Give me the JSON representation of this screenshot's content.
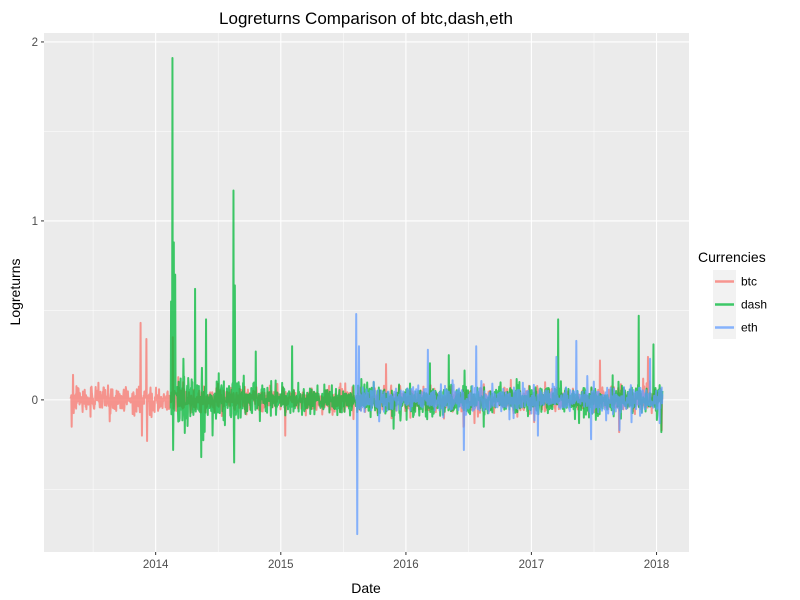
{
  "chart_data": {
    "type": "line",
    "title": "Logreturns Comparison of  btc,dash,eth",
    "xlabel": "Date",
    "ylabel": "Logreturns",
    "x_range": [
      "2013-04-28",
      "2018-01-18"
    ],
    "ylim": [
      -0.85,
      2.05
    ],
    "x_ticks": [
      {
        "label": "2014",
        "date": "2014-01-01"
      },
      {
        "label": "2015",
        "date": "2015-01-01"
      },
      {
        "label": "2016",
        "date": "2016-01-01"
      },
      {
        "label": "2017",
        "date": "2017-01-01"
      },
      {
        "label": "2018",
        "date": "2018-01-01"
      }
    ],
    "y_ticks": [
      0,
      1,
      2
    ],
    "grid": true,
    "legend": {
      "title": "Currencies",
      "position": "right"
    },
    "series": [
      {
        "name": "btc",
        "color": "#F8766D",
        "date_range": [
          "2013-04-28",
          "2018-01-18"
        ],
        "typical_amplitude": 0.06,
        "points": [
          {
            "x": "2013-05-01",
            "y": -0.15
          },
          {
            "x": "2013-05-05",
            "y": 0.14
          },
          {
            "x": "2013-08-20",
            "y": -0.12
          },
          {
            "x": "2013-11-18",
            "y": 0.43
          },
          {
            "x": "2013-11-22",
            "y": -0.2
          },
          {
            "x": "2013-12-05",
            "y": 0.34
          },
          {
            "x": "2013-12-07",
            "y": -0.23
          },
          {
            "x": "2014-02-20",
            "y": 0.35
          },
          {
            "x": "2015-01-14",
            "y": -0.2
          },
          {
            "x": "2015-11-04",
            "y": 0.2
          },
          {
            "x": "2016-06-17",
            "y": -0.15
          },
          {
            "x": "2017-07-20",
            "y": 0.22
          },
          {
            "x": "2017-09-14",
            "y": -0.18
          },
          {
            "x": "2017-12-07",
            "y": 0.24
          },
          {
            "x": "2018-01-16",
            "y": -0.17
          }
        ]
      },
      {
        "name": "dash",
        "color": "#00BA38",
        "date_range": [
          "2014-02-14",
          "2018-01-18"
        ],
        "typical_amplitude": 0.07,
        "points": [
          {
            "x": "2014-02-15",
            "y": 0.55
          },
          {
            "x": "2014-02-19",
            "y": 1.91
          },
          {
            "x": "2014-02-21",
            "y": -0.28
          },
          {
            "x": "2014-02-23",
            "y": 0.88
          },
          {
            "x": "2014-02-27",
            "y": 0.7
          },
          {
            "x": "2014-04-26",
            "y": 0.62
          },
          {
            "x": "2014-05-14",
            "y": -0.32
          },
          {
            "x": "2014-05-28",
            "y": 0.45
          },
          {
            "x": "2014-08-16",
            "y": 1.17
          },
          {
            "x": "2014-08-18",
            "y": -0.35
          },
          {
            "x": "2014-08-20",
            "y": 0.64
          },
          {
            "x": "2014-10-20",
            "y": 0.27
          },
          {
            "x": "2015-02-03",
            "y": 0.3
          },
          {
            "x": "2016-05-05",
            "y": 0.25
          },
          {
            "x": "2016-08-15",
            "y": -0.15
          },
          {
            "x": "2017-03-20",
            "y": 0.45
          },
          {
            "x": "2017-05-20",
            "y": -0.13
          },
          {
            "x": "2017-11-10",
            "y": 0.47
          },
          {
            "x": "2017-12-23",
            "y": 0.31
          },
          {
            "x": "2018-01-15",
            "y": -0.18
          }
        ]
      },
      {
        "name": "eth",
        "color": "#619CFF",
        "date_range": [
          "2015-08-08",
          "2018-01-18"
        ],
        "typical_amplitude": 0.06,
        "points": [
          {
            "x": "2015-08-09",
            "y": 0.48
          },
          {
            "x": "2015-08-12",
            "y": -0.75
          },
          {
            "x": "2015-08-17",
            "y": 0.3
          },
          {
            "x": "2015-10-15",
            "y": -0.12
          },
          {
            "x": "2016-03-05",
            "y": 0.28
          },
          {
            "x": "2016-06-18",
            "y": -0.28
          },
          {
            "x": "2016-07-24",
            "y": 0.3
          },
          {
            "x": "2017-01-20",
            "y": -0.2
          },
          {
            "x": "2017-03-15",
            "y": 0.24
          },
          {
            "x": "2017-05-12",
            "y": 0.33
          },
          {
            "x": "2017-06-24",
            "y": -0.22
          },
          {
            "x": "2017-09-15",
            "y": -0.17
          },
          {
            "x": "2017-12-13",
            "y": 0.23
          },
          {
            "x": "2018-01-10",
            "y": -0.13
          }
        ]
      }
    ]
  }
}
